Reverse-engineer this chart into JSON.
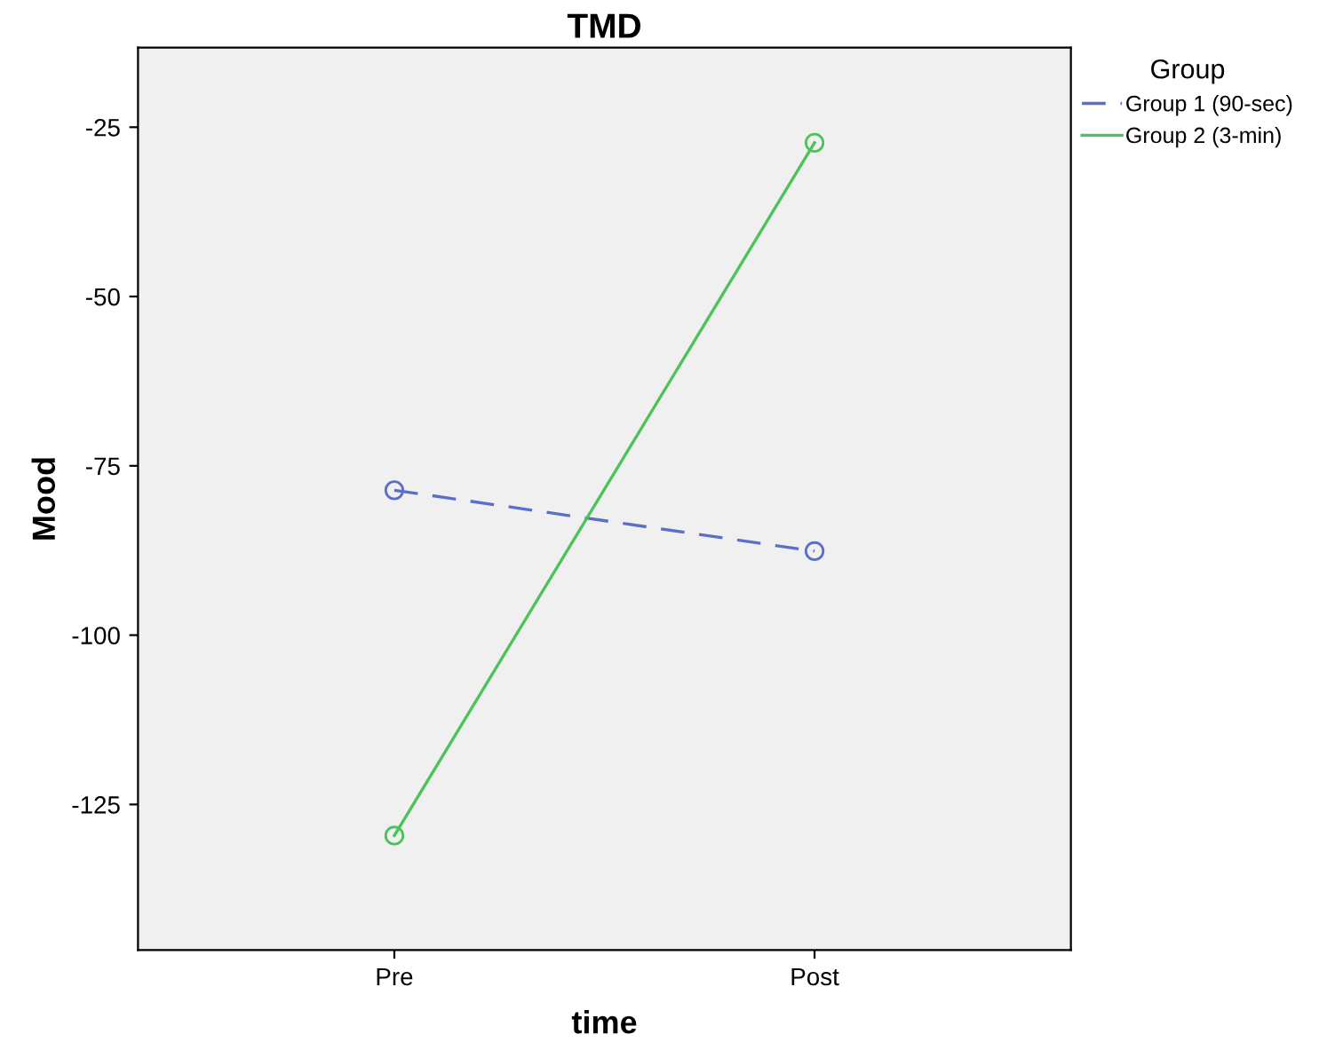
{
  "chart_data": {
    "type": "line",
    "title": "TMD",
    "xlabel": "time",
    "ylabel": "Mood",
    "legend_title": "Group",
    "categories": [
      "Pre",
      "Post"
    ],
    "series": [
      {
        "name": "Group 1 (90-sec)",
        "color": "#5b6ec8",
        "values": [
          -78.6,
          -87.6
        ],
        "line_style": "dashed"
      },
      {
        "name": "Group 2 (3-min)",
        "color": "#4cc25a",
        "values": [
          -129.6,
          -27.3
        ],
        "line_style": "solid"
      }
    ],
    "ylim": [
      -146.5,
      -13.25
    ],
    "yticks": [
      -25,
      -50,
      -75,
      -100,
      -125
    ],
    "marker": "circle",
    "grid": false,
    "legend": "top right"
  }
}
